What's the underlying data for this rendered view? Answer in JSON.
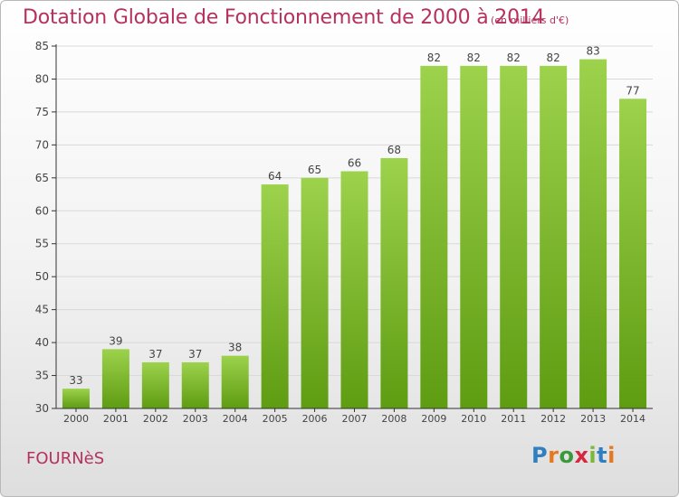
{
  "header": {
    "title": "Dotation Globale de Fonctionnement de 2000 à 2014",
    "unit": "(en milliers d'€)"
  },
  "footer": {
    "commune": "FOURNèS",
    "logo": "Proxiti"
  },
  "colors": {
    "title": "#b5325d",
    "bar_top": "#9dd24c",
    "bar_bottom": "#5e9c12",
    "grid": "#d9d9d9",
    "axis": "#333333",
    "label": "#444444"
  },
  "chart_data": {
    "type": "bar",
    "title": "Dotation Globale de Fonctionnement de 2000 à 2014",
    "subtitle": "(en milliers d'€)",
    "categories": [
      "2000",
      "2001",
      "2002",
      "2003",
      "2004",
      "2005",
      "2006",
      "2007",
      "2008",
      "2009",
      "2010",
      "2011",
      "2012",
      "2013",
      "2014"
    ],
    "values": [
      33,
      39,
      37,
      37,
      38,
      64,
      65,
      66,
      68,
      82,
      82,
      82,
      82,
      83,
      77
    ],
    "ylim": [
      30,
      85
    ],
    "yticks": [
      30,
      35,
      40,
      45,
      50,
      55,
      60,
      65,
      70,
      75,
      80,
      85
    ],
    "grid": true,
    "legend": "none"
  }
}
